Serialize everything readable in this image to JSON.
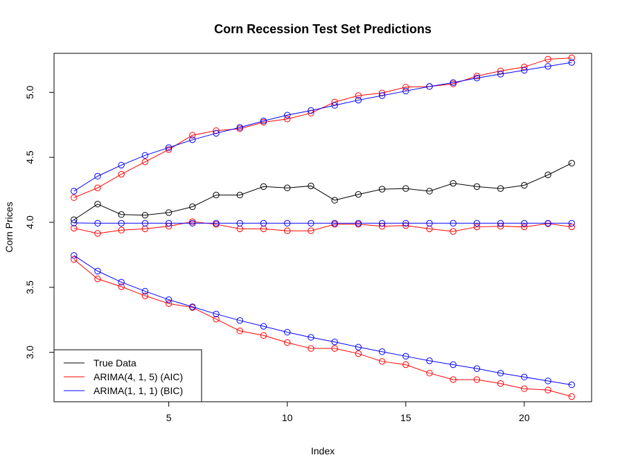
{
  "chart_data": {
    "type": "line",
    "title": "Corn Recession Test Set Predictions",
    "xlabel": "Index",
    "ylabel": "Corn Prices",
    "xlim": [
      0.16,
      22.84
    ],
    "ylim": [
      2.62,
      5.3
    ],
    "x_ticks": [
      5,
      10,
      15,
      20
    ],
    "y_ticks": [
      3.0,
      3.5,
      4.0,
      4.5,
      5.0
    ],
    "x_tick_labels": [
      "5",
      "10",
      "15",
      "20"
    ],
    "y_tick_labels": [
      "3.0",
      "3.5",
      "4.0",
      "4.5",
      "5.0"
    ],
    "grid": false,
    "legend_position": "bottom-left",
    "x": [
      1,
      2,
      3,
      4,
      5,
      6,
      7,
      8,
      9,
      10,
      11,
      12,
      13,
      14,
      15,
      16,
      17,
      18,
      19,
      20,
      21,
      22
    ],
    "series": [
      {
        "name": "True Data",
        "color": "#000000",
        "values": [
          4.02,
          4.14,
          4.06,
          4.055,
          4.075,
          4.12,
          4.21,
          4.21,
          4.275,
          4.265,
          4.28,
          4.17,
          4.215,
          4.255,
          4.26,
          4.24,
          4.3,
          4.275,
          4.26,
          4.285,
          4.365,
          4.455
        ]
      },
      {
        "name": "ARIMA(4, 1, 5) (AIC)",
        "color": "#ff0000",
        "values": [
          3.955,
          3.915,
          3.94,
          3.95,
          3.97,
          4.005,
          3.985,
          3.95,
          3.95,
          3.935,
          3.935,
          3.985,
          3.985,
          3.97,
          3.975,
          3.95,
          3.93,
          3.965,
          3.97,
          3.965,
          3.99,
          3.965
        ]
      },
      {
        "name": "ARIMA(1, 1, 1) (BIC)",
        "color": "#0000ff",
        "values": [
          3.995,
          3.993,
          3.993,
          3.993,
          3.993,
          3.993,
          3.993,
          3.993,
          3.993,
          3.993,
          3.993,
          3.993,
          3.993,
          3.993,
          3.993,
          3.993,
          3.993,
          3.993,
          3.993,
          3.993,
          3.993,
          3.993
        ]
      }
    ],
    "interval_series": [
      {
        "model": "ARIMA(4, 1, 5) (AIC)",
        "color": "#ff0000",
        "upper": [
          4.19,
          4.265,
          4.37,
          4.465,
          4.56,
          4.67,
          4.705,
          4.72,
          4.77,
          4.795,
          4.84,
          4.925,
          4.975,
          4.995,
          5.04,
          5.045,
          5.065,
          5.125,
          5.165,
          5.195,
          5.255,
          5.265
        ],
        "lower": [
          3.715,
          3.565,
          3.505,
          3.435,
          3.375,
          3.345,
          3.255,
          3.165,
          3.13,
          3.075,
          3.03,
          3.03,
          2.99,
          2.93,
          2.905,
          2.84,
          2.79,
          2.79,
          2.76,
          2.72,
          2.71,
          2.66
        ]
      },
      {
        "model": "ARIMA(1, 1, 1) (BIC)",
        "color": "#0000ff",
        "upper": [
          4.24,
          4.355,
          4.44,
          4.515,
          4.575,
          4.635,
          4.685,
          4.73,
          4.78,
          4.825,
          4.86,
          4.9,
          4.94,
          4.975,
          5.01,
          5.045,
          5.075,
          5.11,
          5.14,
          5.17,
          5.2,
          5.23
        ],
        "lower": [
          3.745,
          3.625,
          3.54,
          3.47,
          3.405,
          3.35,
          3.295,
          3.245,
          3.2,
          3.155,
          3.115,
          3.08,
          3.04,
          3.005,
          2.97,
          2.935,
          2.905,
          2.875,
          2.84,
          2.81,
          2.78,
          2.75
        ]
      }
    ]
  }
}
